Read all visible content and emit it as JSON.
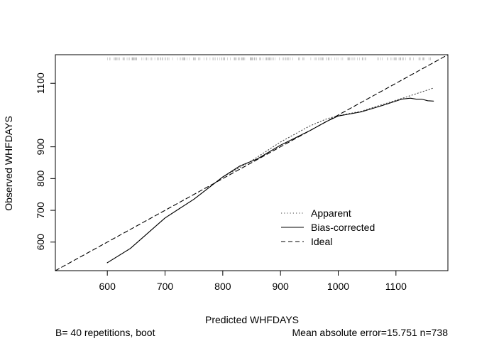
{
  "chart_data": {
    "type": "line",
    "title": "",
    "xlabel": "Predicted WHFDAYS",
    "ylabel": "Observed WHFDAYS",
    "xlim": [
      510,
      1190
    ],
    "ylim": [
      510,
      1190
    ],
    "x_ticks": [
      600,
      700,
      800,
      900,
      1000,
      1100
    ],
    "y_ticks": [
      600,
      700,
      800,
      900,
      1100
    ],
    "grid": false,
    "legend_position": "bottom-right",
    "footer_left": "B= 40 repetitions, boot",
    "footer_right": "Mean absolute error=15.751 n=738",
    "series": [
      {
        "name": "Apparent",
        "style": "dotted",
        "color": "#444444",
        "points": [
          [
            600,
            535
          ],
          [
            640,
            580
          ],
          [
            700,
            676
          ],
          [
            750,
            735
          ],
          [
            800,
            805
          ],
          [
            850,
            856
          ],
          [
            900,
            915
          ],
          [
            950,
            965
          ],
          [
            980,
            988
          ],
          [
            1000,
            998
          ],
          [
            1040,
            1012
          ],
          [
            1080,
            1035
          ],
          [
            1120,
            1058
          ],
          [
            1165,
            1085
          ]
        ]
      },
      {
        "name": "Bias-corrected",
        "style": "solid",
        "color": "#000000",
        "points": [
          [
            600,
            535
          ],
          [
            640,
            580
          ],
          [
            700,
            676
          ],
          [
            750,
            735
          ],
          [
            800,
            805
          ],
          [
            830,
            840
          ],
          [
            860,
            862
          ],
          [
            900,
            905
          ],
          [
            950,
            950
          ],
          [
            980,
            980
          ],
          [
            1000,
            997
          ],
          [
            1040,
            1010
          ],
          [
            1080,
            1032
          ],
          [
            1110,
            1050
          ],
          [
            1125,
            1053
          ],
          [
            1135,
            1050
          ],
          [
            1145,
            1050
          ],
          [
            1155,
            1045
          ],
          [
            1165,
            1044
          ]
        ]
      },
      {
        "name": "Ideal",
        "style": "dashed",
        "color": "#000000",
        "points": [
          [
            510,
            510
          ],
          [
            1190,
            1190
          ]
        ]
      }
    ],
    "rug": {
      "y": 1177,
      "x_from": 600,
      "x_to": 1165,
      "color": "#aaaaaa"
    }
  }
}
